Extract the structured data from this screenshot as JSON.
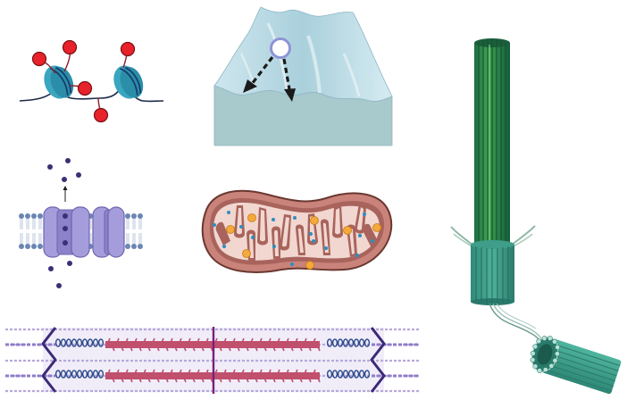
{
  "figure": {
    "panels": [
      {
        "id": "nucleosomes",
        "icon": "nucleosome-icon"
      },
      {
        "id": "energy-landscape",
        "icon": "energy-landscape-icon"
      },
      {
        "id": "microtubule",
        "icon": "microtubule-icon"
      },
      {
        "id": "membrane-channel",
        "icon": "membrane-channel-icon"
      },
      {
        "id": "mitochondrion",
        "icon": "mitochondrion-icon"
      },
      {
        "id": "sarcomere",
        "icon": "sarcomere-icon"
      }
    ],
    "colors": {
      "nucleosome": "#3aa6bf",
      "modification": "#e8222a",
      "landscape": "#bcdce6",
      "landscape_base": "#a8cacd",
      "microtubule_dark": "#1e6e4a",
      "microtubule_light": "#4caf50",
      "microtubule_teal": "#3e9e8a",
      "channel": "#a59cdb",
      "membrane": "#6b86b3",
      "ion": "#3b3076",
      "mito_outer": "#c9837b",
      "mito_inner": "#f1d7d0",
      "mito_particle_orange": "#f4a93b",
      "mito_particle_blue": "#2a8fc1",
      "actin": "#c0506e",
      "myosin": "#2e4a8c",
      "z_disc": "#3b2a77",
      "m_line": "#7a1f7a"
    }
  }
}
